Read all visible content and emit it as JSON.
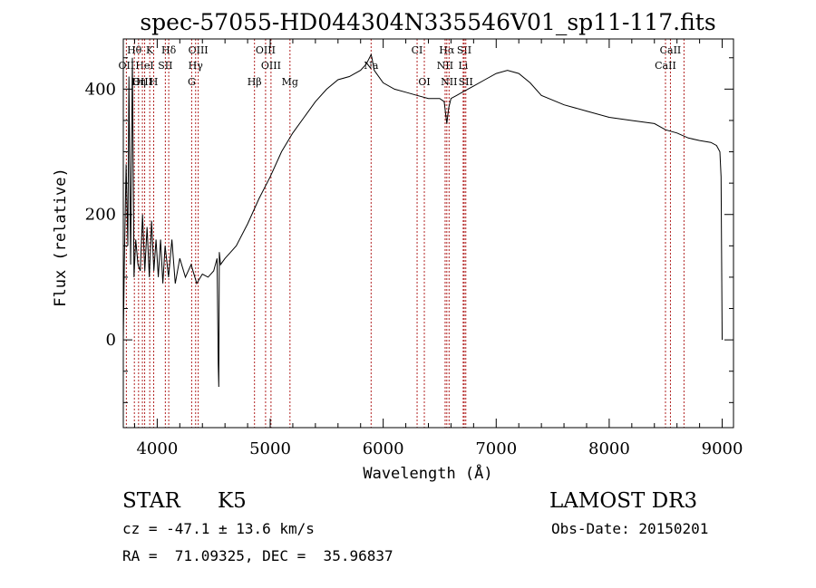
{
  "chart_data": {
    "type": "line",
    "title": "spec-57055-HD044304N335546V01_sp11-117.fits",
    "xlabel": "Wavelength (Å)",
    "ylabel": "Flux (relative)",
    "xlim": [
      3700,
      9100
    ],
    "ylim": [
      -140,
      480
    ],
    "x_ticks": [
      4000,
      5000,
      6000,
      7000,
      8000,
      9000
    ],
    "y_ticks": [
      0,
      200,
      400
    ],
    "line_color": "#000000",
    "marker_color": "#b22222",
    "series": [
      {
        "name": "flux",
        "x": [
          3700,
          3710,
          3725,
          3740,
          3750,
          3765,
          3780,
          3795,
          3810,
          3830,
          3850,
          3870,
          3890,
          3910,
          3930,
          3950,
          3970,
          3990,
          4010,
          4030,
          4050,
          4070,
          4100,
          4130,
          4160,
          4200,
          4250,
          4300,
          4350,
          4400,
          4450,
          4500,
          4530,
          4540,
          4545,
          4550,
          4560,
          4600,
          4650,
          4700,
          4800,
          4900,
          5000,
          5100,
          5200,
          5300,
          5400,
          5500,
          5600,
          5700,
          5800,
          5850,
          5893,
          5900,
          5920,
          5940,
          6000,
          6100,
          6200,
          6300,
          6400,
          6500,
          6540,
          6563,
          6580,
          6600,
          6650,
          6700,
          6800,
          6900,
          7000,
          7100,
          7200,
          7300,
          7400,
          7600,
          7800,
          8000,
          8200,
          8400,
          8500,
          8600,
          8700,
          8800,
          8900,
          8950,
          8980,
          8990,
          9000
        ],
        "y": [
          0,
          130,
          280,
          150,
          420,
          120,
          450,
          100,
          160,
          120,
          110,
          200,
          110,
          180,
          100,
          190,
          110,
          160,
          100,
          160,
          90,
          150,
          100,
          160,
          90,
          130,
          100,
          120,
          90,
          105,
          100,
          110,
          130,
          -40,
          -75,
          140,
          120,
          130,
          140,
          150,
          185,
          225,
          260,
          300,
          330,
          355,
          380,
          400,
          415,
          420,
          430,
          440,
          455,
          450,
          430,
          425,
          410,
          400,
          395,
          390,
          385,
          385,
          380,
          345,
          370,
          385,
          390,
          395,
          405,
          415,
          425,
          430,
          425,
          410,
          390,
          375,
          365,
          355,
          350,
          345,
          335,
          330,
          322,
          318,
          315,
          310,
          300,
          260,
          0
        ]
      }
    ],
    "lines": [
      {
        "label": "Hθ",
        "wavelength": 3798
      },
      {
        "label": "K",
        "wavelength": 3934
      },
      {
        "label": "Hδ",
        "wavelength": 4102
      },
      {
        "label": "OIII",
        "wavelength": 4363
      },
      {
        "label": "OIII",
        "wavelength": 4959
      },
      {
        "label": "CI",
        "wavelength": 6300
      },
      {
        "label": "Hα",
        "wavelength": 6563
      },
      {
        "label": "SII",
        "wavelength": 6717
      },
      {
        "label": "CaII",
        "wavelength": 8542
      },
      {
        "label": "OII",
        "wavelength": 3727
      },
      {
        "label": "HeI",
        "wavelength": 3889
      },
      {
        "label": "SII",
        "wavelength": 4072
      },
      {
        "label": "Hγ",
        "wavelength": 4340
      },
      {
        "label": "OIII",
        "wavelength": 5007
      },
      {
        "label": "Na",
        "wavelength": 5893
      },
      {
        "label": "NII",
        "wavelength": 6548
      },
      {
        "label": "Li",
        "wavelength": 6708
      },
      {
        "label": "CaII",
        "wavelength": 8498
      },
      {
        "label": "OIII",
        "wavelength": 3869
      },
      {
        "label": "Hη",
        "wavelength": 3835
      },
      {
        "label": "H",
        "wavelength": 3969
      },
      {
        "label": "G",
        "wavelength": 4305
      },
      {
        "label": "Hβ",
        "wavelength": 4861
      },
      {
        "label": "Mg",
        "wavelength": 5175
      },
      {
        "label": "OI",
        "wavelength": 6364
      },
      {
        "label": "NII",
        "wavelength": 6583
      },
      {
        "label": "SII",
        "wavelength": 6731
      },
      {
        "label": "CaII",
        "wavelength": 8662
      }
    ]
  },
  "footer": {
    "class_label": "STAR",
    "subclass": "K5",
    "survey": "LAMOST DR3",
    "redshift": "cz = -47.1 ± 13.6 km/s",
    "obs_date": "Obs-Date: 20150201",
    "coords": "RA =  71.09325, DEC =  35.96837"
  }
}
